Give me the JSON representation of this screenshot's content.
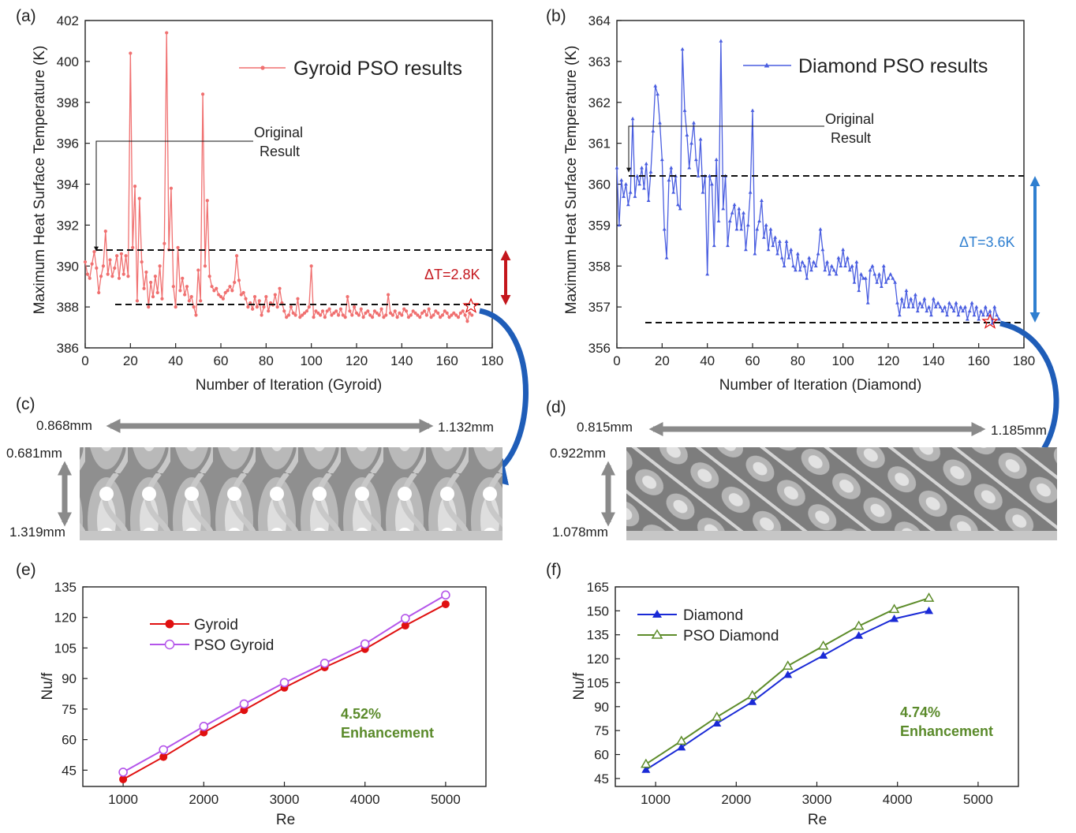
{
  "colors": {
    "gyroid_pso": "#f07070",
    "diamond_pso": "#4a5ee0",
    "gyroid_red": "#e01010",
    "pso_purple": "#b455ea",
    "diamond_blue": "#1a2ad6",
    "pso_diamond_green": "#5d8c2a",
    "dt_red": "#c4161c",
    "dt_blue": "#2f7fd0",
    "enhancement_green": "#5a8a2a",
    "arrow_blue": "#1f5db8"
  },
  "chart_data": [
    {
      "panel": "(a)",
      "type": "line",
      "xlabel": "Number of Iteration (Gyroid)",
      "ylabel": "Maximum Heat Surface Temperature (K)",
      "xlim": [
        0,
        180
      ],
      "ylim": [
        386,
        402
      ],
      "xticks": [
        "0",
        "20",
        "40",
        "60",
        "80",
        "100",
        "120",
        "140",
        "160",
        "180"
      ],
      "yticks": [
        "386",
        "388",
        "390",
        "392",
        "394",
        "396",
        "398",
        "400",
        "402"
      ],
      "legend": "Gyroid PSO results",
      "annotation": "Original\nResult",
      "original_value": 390.1,
      "optimized_value": 387.3,
      "delta_label": "ΔT=2.8K",
      "series": [
        {
          "name": "Gyroid PSO results",
          "values": [
            390.2,
            389.6,
            389.4,
            390.1,
            390.7,
            389.9,
            388.7,
            389.5,
            390.0,
            391.7,
            389.6,
            390.3,
            389.5,
            389.9,
            390.5,
            389.4,
            390.6,
            389.6,
            390.5,
            389.5,
            400.4,
            390.9,
            393.9,
            388.3,
            393.3,
            390.2,
            388.9,
            389.7,
            388.0,
            389.2,
            388.5,
            389.5,
            388.7,
            390.0,
            388.4,
            391.1,
            401.4,
            390.8,
            393.8,
            389.0,
            388.0,
            390.9,
            388.8,
            389.4,
            388.6,
            389.0,
            388.3,
            388.5,
            388.0,
            387.6,
            389.8,
            388.3,
            398.4,
            390.0,
            393.2,
            389.5,
            389.0,
            388.8,
            388.9,
            388.6,
            388.5,
            388.4,
            388.7,
            388.8,
            389.0,
            388.8,
            389.2,
            390.5,
            389.3,
            388.6,
            388.7,
            388.4,
            388.0,
            388.2,
            387.9,
            388.5,
            388.0,
            388.3,
            387.6,
            388.0,
            388.5,
            387.8,
            388.2,
            388.1,
            388.6,
            388.0,
            388.9,
            388.2,
            387.8,
            387.5,
            387.6,
            388.0,
            387.7,
            387.6,
            388.4,
            387.5,
            387.6,
            387.7,
            387.8,
            388.0,
            390.0,
            387.5,
            387.8,
            387.7,
            387.6,
            387.8,
            387.5,
            387.8,
            387.9,
            387.6,
            387.7,
            387.8,
            387.6,
            387.9,
            387.6,
            387.5,
            388.5,
            387.8,
            387.6,
            388.0,
            387.7,
            387.6,
            387.9,
            387.5,
            387.7,
            387.8,
            387.6,
            387.5,
            387.8,
            387.7,
            387.6,
            387.9,
            387.5,
            387.6,
            388.6,
            387.7,
            387.6,
            387.8,
            387.5,
            387.7,
            387.6,
            387.9,
            387.8,
            387.5,
            387.6,
            387.8,
            387.7,
            387.6,
            387.5,
            387.7,
            387.8,
            387.6,
            387.9,
            387.5,
            387.6,
            387.8,
            387.7,
            387.5,
            387.6,
            387.8,
            387.7,
            387.5,
            387.6,
            387.7,
            387.6,
            387.5,
            387.7,
            387.8,
            387.6,
            387.3,
            387.7,
            387.6
          ]
        }
      ]
    },
    {
      "panel": "(b)",
      "type": "line",
      "xlabel": "Number of Iteration (Diamond)",
      "ylabel": "Maximum Heat Surface Temperature (K)",
      "xlim": [
        0,
        180
      ],
      "ylim": [
        356,
        364
      ],
      "xticks": [
        "0",
        "20",
        "40",
        "60",
        "80",
        "100",
        "120",
        "140",
        "160",
        "180"
      ],
      "yticks": [
        "356",
        "357",
        "358",
        "359",
        "360",
        "361",
        "362",
        "363",
        "364"
      ],
      "legend": "Diamond PSO results",
      "annotation": "Original\nResult",
      "original_value": 360.2,
      "optimized_value": 356.6,
      "delta_label": "ΔT=3.6K",
      "series": [
        {
          "name": "Diamond PSO results",
          "values": [
            360.4,
            359.0,
            360.1,
            359.7,
            360.0,
            359.5,
            359.8,
            361.6,
            359.7,
            360.2,
            360.0,
            360.4,
            359.9,
            360.5,
            359.6,
            360.3,
            361.3,
            362.4,
            362.2,
            361.5,
            360.6,
            358.9,
            358.2,
            360.1,
            360.4,
            359.8,
            360.2,
            359.5,
            359.4,
            363.3,
            361.8,
            361.2,
            360.4,
            361.0,
            361.5,
            360.6,
            360.2,
            361.1,
            359.8,
            360.2,
            357.8,
            360.2,
            360.0,
            358.5,
            360.6,
            359.1,
            363.5,
            359.4,
            360.2,
            358.5,
            359.1,
            359.3,
            359.5,
            358.9,
            359.4,
            358.9,
            359.3,
            358.4,
            359.0,
            359.8,
            361.8,
            358.3,
            358.9,
            359.1,
            359.6,
            358.7,
            359.0,
            358.4,
            358.9,
            358.5,
            358.7,
            358.3,
            358.6,
            358.2,
            358.0,
            358.6,
            358.2,
            358.4,
            358.0,
            357.9,
            358.3,
            357.9,
            358.1,
            358.0,
            357.7,
            358.2,
            357.9,
            358.1,
            358.0,
            358.3,
            358.9,
            358.4,
            357.9,
            358.1,
            357.8,
            358.0,
            357.9,
            357.8,
            358.2,
            358.0,
            358.4,
            358.0,
            358.2,
            357.9,
            358.0,
            357.6,
            358.1,
            357.4,
            357.8,
            357.7,
            357.7,
            357.1,
            357.9,
            358.0,
            357.8,
            357.6,
            357.8,
            357.5,
            358.0,
            357.6,
            357.7,
            357.8,
            357.7,
            357.6,
            357.1,
            356.8,
            357.2,
            357.0,
            357.4,
            357.0,
            357.2,
            357.0,
            357.3,
            356.9,
            357.1,
            357.0,
            357.2,
            356.9,
            357.0,
            356.8,
            357.2,
            357.0,
            357.1,
            357.0,
            356.9,
            357.0,
            356.8,
            357.1,
            357.0,
            356.9,
            357.1,
            356.8,
            357.0,
            356.9,
            357.0,
            356.7,
            356.9,
            357.1,
            356.8,
            357.0,
            356.7,
            356.9,
            356.8,
            357.0,
            356.8,
            356.9,
            356.6,
            357.0,
            356.8,
            356.7
          ]
        }
      ]
    },
    {
      "panel": "(e)",
      "type": "line",
      "xlabel": "Re",
      "ylabel": "Nu/f",
      "xlim": [
        500,
        5500
      ],
      "ylim": [
        37,
        135
      ],
      "xticks": [
        "1000",
        "2000",
        "3000",
        "4000",
        "5000"
      ],
      "yticks": [
        "45",
        "60",
        "75",
        "90",
        "105",
        "120",
        "135"
      ],
      "x": [
        1000,
        1500,
        2000,
        2500,
        3000,
        3500,
        4000,
        4500,
        5000
      ],
      "series": [
        {
          "name": "Gyroid",
          "values": [
            40.5,
            51.5,
            63.5,
            74.5,
            85.5,
            95.5,
            104.5,
            116,
            126.5
          ]
        },
        {
          "name": "PSO Gyroid",
          "values": [
            44,
            55,
            66.5,
            77.5,
            88,
            97.5,
            107,
            119.5,
            131
          ]
        }
      ],
      "annotation": "4.52%\nEnhancement"
    },
    {
      "panel": "(f)",
      "type": "line",
      "xlabel": "Re",
      "ylabel": "Nu/f",
      "xlim": [
        500,
        5500
      ],
      "ylim": [
        40,
        165
      ],
      "xticks": [
        "1000",
        "2000",
        "3000",
        "4000",
        "5000"
      ],
      "yticks": [
        "45",
        "60",
        "75",
        "90",
        "105",
        "120",
        "135",
        "150",
        "165"
      ],
      "x": [
        880,
        1320,
        1760,
        2200,
        2640,
        3080,
        3520,
        3960,
        4390
      ],
      "series": [
        {
          "name": "Diamond",
          "values": [
            50.5,
            64.5,
            79.5,
            93,
            110,
            122,
            134.5,
            145,
            150
          ]
        },
        {
          "name": "PSO Diamond",
          "values": [
            54,
            68.5,
            83.5,
            97,
            115.5,
            128,
            140.5,
            151,
            158
          ]
        }
      ],
      "annotation": "4.74%\nEnhancement"
    }
  ],
  "panel_c": {
    "label": "(c)",
    "top_left": "0.868mm",
    "top_right": "1.132mm",
    "side_top": "0.681mm",
    "side_bottom": "1.319mm"
  },
  "panel_d": {
    "label": "(d)",
    "top_left": "0.815mm",
    "top_right": "1.185mm",
    "side_top": "0.922mm",
    "side_bottom": "1.078mm"
  }
}
